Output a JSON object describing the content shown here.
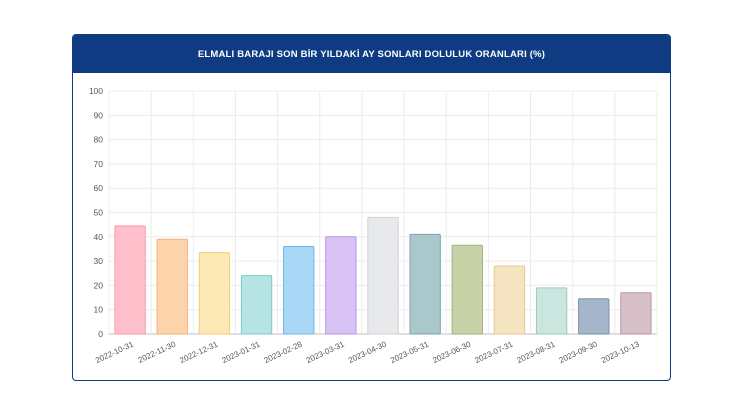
{
  "chart_data": {
    "type": "bar",
    "title": "ELMALI BARAJI SON BİR YILDAKİ AY SONLARI DOLULUK ORANLARI (%)",
    "categories": [
      "2022-10-31",
      "2022-11-30",
      "2022-12-31",
      "2023-01-31",
      "2023-02-28",
      "2023-03-31",
      "2023-04-30",
      "2023-05-31",
      "2023-06-30",
      "2023-07-31",
      "2023-08-31",
      "2023-09-30",
      "2023-10-13"
    ],
    "values": [
      44.5,
      39,
      33.5,
      24,
      36,
      40,
      48,
      41,
      36.5,
      28,
      19,
      14.5,
      17
    ],
    "colors": [
      "#ffc0cb",
      "#fdd3ac",
      "#fde9b5",
      "#b6e3e3",
      "#a9d7f6",
      "#d9c3f4",
      "#e8e9eb",
      "#a8c8cc",
      "#c8d2a8",
      "#f5e4c1",
      "#cbe6df",
      "#a6b6ca",
      "#d8c0c8"
    ],
    "border_colors": [
      "#f59aae",
      "#f3b27a",
      "#f0cf7a",
      "#7fcaca",
      "#6fb8e6",
      "#b596e6",
      "#cfd1d4",
      "#7aa5ab",
      "#a3b27a",
      "#e6c98e",
      "#9ccabd",
      "#7a8fa9",
      "#b896a3"
    ],
    "ylim": [
      0,
      100
    ],
    "yticks": [
      0,
      10,
      20,
      30,
      40,
      50,
      60,
      70,
      80,
      90,
      100
    ],
    "grid": true,
    "xlabel": "",
    "ylabel": ""
  }
}
